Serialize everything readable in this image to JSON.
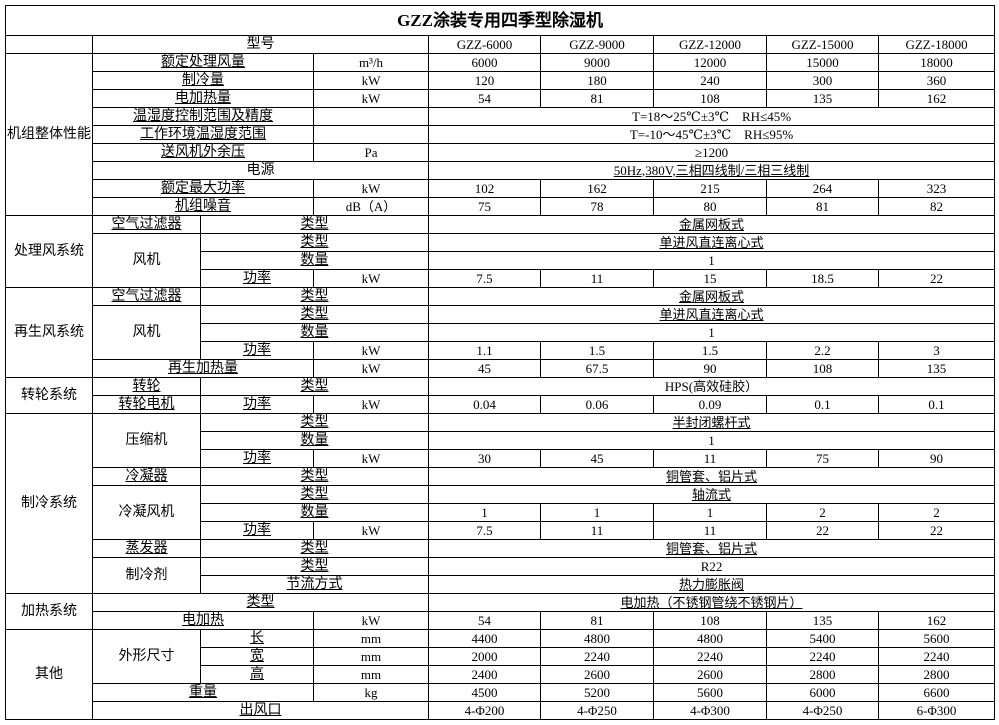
{
  "title": "GZZ涂装专用四季型除湿机",
  "model_row": {
    "label": "型号",
    "models": [
      "GZZ-6000",
      "GZZ-9000",
      "GZZ-12000",
      "GZZ-15000",
      "GZZ-18000"
    ]
  },
  "overall": {
    "group": "机组整体性能",
    "airflow": {
      "label": "额定处理风量",
      "unit": "m³/h",
      "values": [
        "6000",
        "9000",
        "12000",
        "15000",
        "18000"
      ]
    },
    "cooling": {
      "label": "制冷量",
      "unit": "kW",
      "values": [
        "120",
        "180",
        "240",
        "300",
        "360"
      ]
    },
    "heating": {
      "label": "电加热量",
      "unit": "kW",
      "values": [
        "54",
        "81",
        "108",
        "135",
        "162"
      ]
    },
    "control_range": {
      "label": "温湿度控制范围及精度",
      "value": "T=18～25℃±3℃　RH≤45%"
    },
    "ambient_range": {
      "label": "工作环境温湿度范围",
      "value": "T=-10～45℃±3℃　RH≤95%"
    },
    "static_pressure": {
      "label": "送风机外余压",
      "unit": "Pa",
      "value": "≥1200"
    },
    "power_supply": {
      "label": "电源",
      "value": "50Hz,380V,三相四线制/三相三线制"
    },
    "max_power": {
      "label": "额定最大功率",
      "unit": "kW",
      "values": [
        "102",
        "162",
        "215",
        "264",
        "323"
      ]
    },
    "noise": {
      "label": "机组噪音",
      "unit": "dB（A）",
      "values": [
        "75",
        "78",
        "80",
        "81",
        "82"
      ]
    }
  },
  "process_air": {
    "group": "处理风系统",
    "filter_label": "空气过滤器",
    "type_label": "类型",
    "filter_type": "金属网板式",
    "fan_label": "风机",
    "fan_type": "单进风直连离心式",
    "qty_label": "数量",
    "fan_qty": "1",
    "power_label": "功率",
    "unit": "kW",
    "fan_power": [
      "7.5",
      "11",
      "15",
      "18.5",
      "22"
    ]
  },
  "regen_air": {
    "group": "再生风系统",
    "filter_label": "空气过滤器",
    "type_label": "类型",
    "filter_type": "金属网板式",
    "fan_label": "风机",
    "fan_type": "单进风直连离心式",
    "qty_label": "数量",
    "fan_qty": "1",
    "power_label": "功率",
    "unit": "kW",
    "fan_power": [
      "1.1",
      "1.5",
      "1.5",
      "2.2",
      "3"
    ],
    "heat_label": "再生加热量",
    "heat": [
      "45",
      "67.5",
      "90",
      "108",
      "135"
    ]
  },
  "wheel": {
    "group": "转轮系统",
    "wheel_label": "转轮",
    "type_label": "类型",
    "wheel_type": "HPS(高效硅胶）",
    "motor_label": "转轮电机",
    "power_label": "功率",
    "unit": "kW",
    "motor_power": [
      "0.04",
      "0.06",
      "0.09",
      "0.1",
      "0.1"
    ]
  },
  "refrigeration": {
    "group": "制冷系统",
    "compressor_label": "压缩机",
    "type_label": "类型",
    "compressor_type": "半封闭螺杆式",
    "qty_label": "数量",
    "compressor_qty": "1",
    "power_label": "功率",
    "unit": "kW",
    "compressor_power": [
      "30",
      "45",
      "11",
      "75",
      "90"
    ],
    "condenser_label": "冷凝器",
    "condenser_type": "铜管套、铝片式",
    "cond_fan_label": "冷凝风机",
    "cond_fan_type": "轴流式",
    "cond_fan_qty": [
      "1",
      "1",
      "1",
      "2",
      "2"
    ],
    "cond_fan_power": [
      "7.5",
      "11",
      "11",
      "22",
      "22"
    ],
    "evaporator_label": "蒸发器",
    "evaporator_type": "铜管套、铝片式",
    "refrigerant_label": "制冷剂",
    "refrigerant_type": "R22",
    "throttle_label": "节流方式",
    "throttle": "热力膨胀阀"
  },
  "heating_system": {
    "group": "加热系统",
    "type_label": "类型",
    "type": "电加热（不锈钢管绕不锈钢片）",
    "heater_label": "电加热",
    "unit": "kW",
    "power": [
      "54",
      "81",
      "108",
      "135",
      "162"
    ]
  },
  "other": {
    "group": "其他",
    "dims_label": "外形尺寸",
    "length_label": "长",
    "width_label": "宽",
    "height_label": "高",
    "unit_mm": "mm",
    "length": [
      "4400",
      "4800",
      "4800",
      "5400",
      "5600"
    ],
    "width": [
      "2000",
      "2240",
      "2240",
      "2240",
      "2240"
    ],
    "height": [
      "2400",
      "2600",
      "2600",
      "2800",
      "2800"
    ],
    "weight_label": "重量",
    "unit_kg": "kg",
    "weight": [
      "4500",
      "5200",
      "5600",
      "6000",
      "6600"
    ],
    "outlet_label": "出风口",
    "outlet": [
      "4-Φ200",
      "4-Φ250",
      "4-Φ300",
      "4-Φ250",
      "6-Φ300"
    ]
  }
}
